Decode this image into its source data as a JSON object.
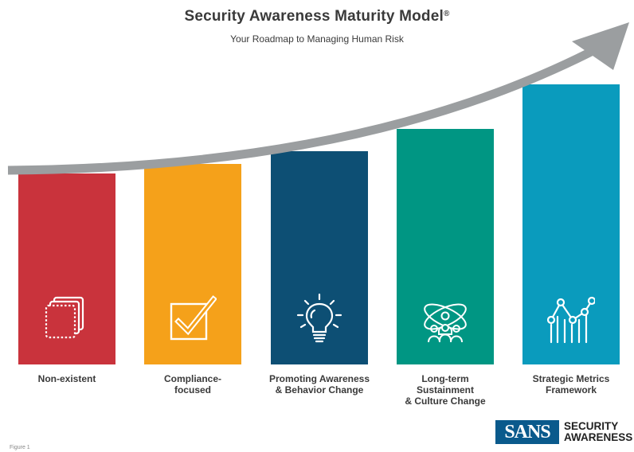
{
  "header": {
    "title": "Security Awareness Maturity Model",
    "registered_mark": "®",
    "subtitle": "Your Roadmap to Managing Human Risk"
  },
  "stages": [
    {
      "label_lines": [
        "Non-existent"
      ],
      "color": "#c9333c",
      "icon": "stacked-squares-icon"
    },
    {
      "label_lines": [
        "Compliance-",
        "focused"
      ],
      "color": "#f5a11a",
      "icon": "checkbox-checked-icon"
    },
    {
      "label_lines": [
        "Promoting Awareness",
        "& Behavior Change"
      ],
      "color": "#0d4f74",
      "icon": "lightbulb-icon"
    },
    {
      "label_lines": [
        "Long-term",
        "Sustainment",
        "& Culture Change"
      ],
      "color": "#009683",
      "icon": "people-atom-icon"
    },
    {
      "label_lines": [
        "Strategic Metrics",
        "Framework"
      ],
      "color": "#0a9bbd",
      "icon": "line-chart-icon"
    }
  ],
  "arrow_color": "#9b9ea0",
  "footer": {
    "figure_label": "Figure 1",
    "logo_brand": "SANS",
    "logo_line1": "SECURITY",
    "logo_line2": "AWARENESS",
    "logo_color": "#0a5a8c"
  }
}
